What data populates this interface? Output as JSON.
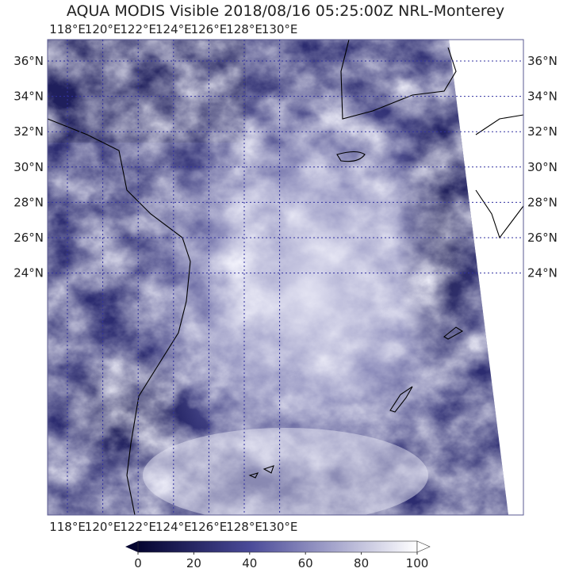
{
  "title": "AQUA MODIS Visible 2018/08/16 05:25:00Z NRL-Monterey",
  "map": {
    "lon_labels": [
      "118°E",
      "120°E",
      "122°E",
      "124°E",
      "126°E",
      "128°E",
      "130°E"
    ],
    "lat_labels": [
      "36°N",
      "34°N",
      "32°N",
      "30°N",
      "28°N",
      "26°N",
      "24°N"
    ]
  },
  "colorbar": {
    "ticks": [
      0,
      20,
      40,
      60,
      80,
      100
    ]
  }
}
